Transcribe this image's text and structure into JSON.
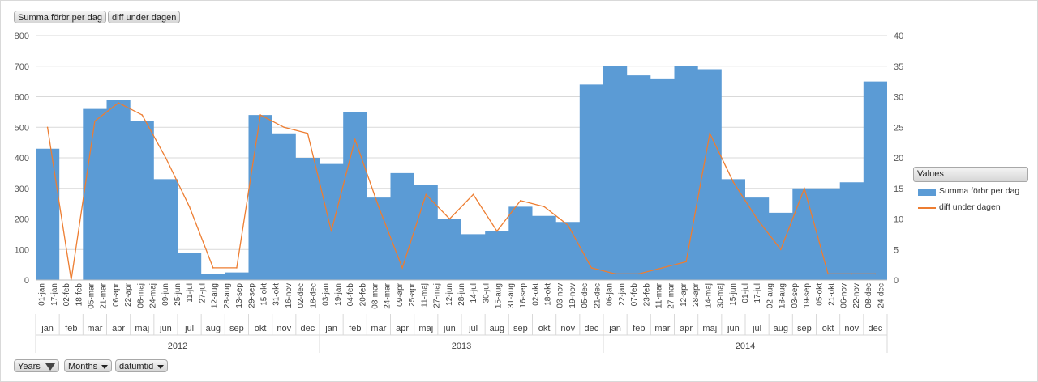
{
  "header_fields": {
    "values_field_1": "Summa förbr per dag",
    "values_field_2": "diff under dagen"
  },
  "footer_fields": {
    "years": "Years",
    "months": "Months",
    "datumtid": "datumtid"
  },
  "legend": {
    "title": "Values",
    "series1": "Summa förbr per dag",
    "series2": "diff under dagen"
  },
  "colors": {
    "series1": "#5b9bd5",
    "series2": "#ed7d31",
    "grid": "#d9d9d9"
  },
  "chart_data": {
    "type": "area",
    "secondary_type": "line",
    "y_left": {
      "ticks": [
        "0",
        "100",
        "200",
        "300",
        "400",
        "500",
        "600",
        "700",
        "800"
      ],
      "range": [
        0,
        800
      ]
    },
    "y_right": {
      "ticks": [
        "0",
        "5",
        "10",
        "15",
        "20",
        "25",
        "30",
        "35",
        "40"
      ],
      "range": [
        0,
        40
      ]
    },
    "grid": true,
    "legend_position": "right",
    "years": [
      "2012",
      "2013",
      "2014"
    ],
    "months": [
      "jan",
      "feb",
      "mar",
      "apr",
      "maj",
      "jun",
      "jul",
      "aug",
      "sep",
      "okt",
      "nov",
      "dec",
      "jan",
      "feb",
      "mar",
      "apr",
      "maj",
      "jun",
      "jul",
      "aug",
      "sep",
      "okt",
      "nov",
      "dec",
      "jan",
      "feb",
      "mar",
      "apr",
      "maj",
      "jun",
      "jul",
      "aug",
      "sep",
      "okt",
      "nov",
      "dec"
    ],
    "date_ticks": [
      "01-jan",
      "17-jan",
      "02-feb",
      "18-feb",
      "05-mar",
      "21-mar",
      "06-apr",
      "22-apr",
      "08-maj",
      "24-maj",
      "09-jun",
      "25-jun",
      "11-jul",
      "27-jul",
      "12-aug",
      "28-aug",
      "13-sep",
      "29-sep",
      "15-okt",
      "31-okt",
      "16-nov",
      "02-dec",
      "18-dec",
      "03-jan",
      "19-jan",
      "04-feb",
      "20-feb",
      "08-mar",
      "24-mar",
      "09-apr",
      "25-apr",
      "11-maj",
      "27-maj",
      "12-jun",
      "28-jun",
      "14-jul",
      "30-jul",
      "15-aug",
      "31-aug",
      "16-sep",
      "02-okt",
      "18-okt",
      "03-nov",
      "19-nov",
      "05-dec",
      "21-dec",
      "06-jan",
      "22-jan",
      "07-feb",
      "23-feb",
      "11-mar",
      "27-mar",
      "12-apr",
      "28-apr",
      "14-maj",
      "30-maj",
      "15-jun",
      "01-jul",
      "17-jul",
      "02-aug",
      "18-aug",
      "03-sep",
      "19-sep",
      "05-okt",
      "21-okt",
      "06-nov",
      "22-nov",
      "08-dec",
      "24-dec"
    ],
    "series": [
      {
        "name": "Summa förbr per dag",
        "axis": "left",
        "values_by_month": [
          430,
          0,
          560,
          590,
          520,
          330,
          90,
          20,
          25,
          540,
          480,
          400,
          380,
          550,
          270,
          350,
          310,
          200,
          150,
          160,
          240,
          210,
          190,
          640,
          700,
          670,
          660,
          700,
          690,
          330,
          270,
          220,
          300,
          300,
          320,
          650
        ]
      },
      {
        "name": "diff under dagen",
        "axis": "right",
        "values_by_month": [
          25,
          0,
          26,
          29,
          27,
          20,
          12,
          2,
          2,
          27,
          25,
          24,
          8,
          23,
          12,
          2,
          14,
          10,
          14,
          8,
          13,
          12,
          9,
          2,
          1,
          1,
          2,
          3,
          24,
          16,
          10,
          5,
          15,
          1,
          1,
          1
        ]
      }
    ]
  }
}
